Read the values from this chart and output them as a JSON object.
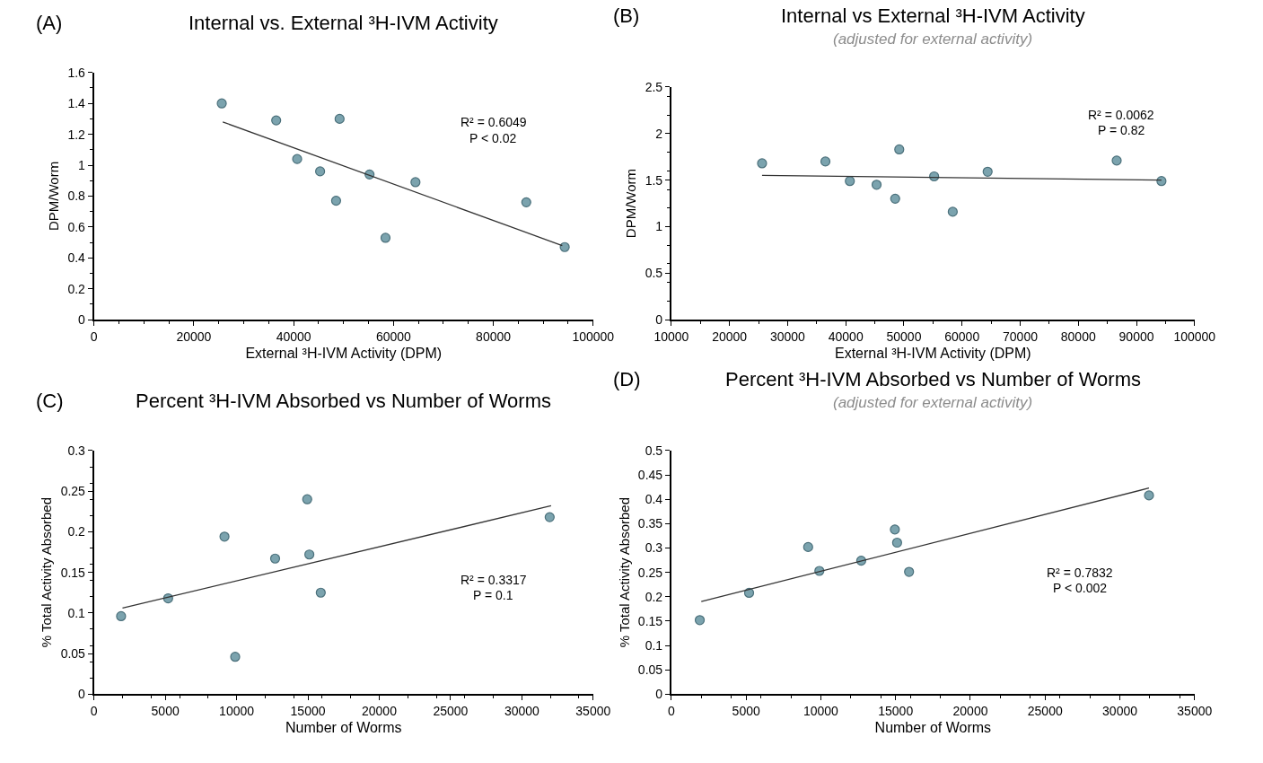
{
  "chart_data": [
    {
      "type": "scatter",
      "title": "Internal vs. External ³H-IVM Activity",
      "annotations": [
        "(A)",
        "R² = 0.6049",
        "P < 0.02"
      ],
      "xlabel": "External ³H-IVM Activity (DPM)",
      "ylabel": "DPM/Worm",
      "xlim": [
        0,
        100000
      ],
      "xticks": [
        0,
        20000,
        40000,
        60000,
        80000,
        100000
      ],
      "ylim": [
        0,
        1.6
      ],
      "yticks": [
        0,
        0.2,
        0.4,
        0.6,
        0.8,
        1,
        1.2,
        1.4,
        1.6
      ],
      "grid": false,
      "legend": false,
      "marker": "circle",
      "series": [
        {
          "color": "#7ba3ae",
          "x": [
            25600,
            36500,
            49200,
            40700,
            45300,
            48500,
            55200,
            58400,
            64400,
            86600,
            94300
          ],
          "values": [
            1.4,
            1.29,
            1.3,
            1.04,
            0.96,
            0.77,
            0.94,
            0.53,
            0.89,
            0.76,
            0.47
          ]
        },
        {
          "type": "line",
          "color": "#333333",
          "line_style": "solid",
          "marker": "none",
          "x": [
            25800,
            93800
          ],
          "values": [
            1.28,
            0.48
          ]
        }
      ]
    },
    {
      "type": "scatter",
      "title": "Internal vs External ³H-IVM Activity",
      "subtitle": "(adjusted for external activity)",
      "annotations": [
        "(B)",
        "R² = 0.0062",
        "P = 0.82"
      ],
      "xlabel": "External ³H-IVM Activity (DPM)",
      "ylabel": "DPM/Worm",
      "xlim": [
        10000,
        100000
      ],
      "xticks": [
        10000,
        20000,
        30000,
        40000,
        50000,
        60000,
        70000,
        80000,
        90000,
        100000
      ],
      "ylim": [
        0,
        2.5
      ],
      "yticks": [
        0,
        0.5,
        1,
        1.5,
        2,
        2.5
      ],
      "grid": false,
      "legend": false,
      "marker": "circle",
      "series": [
        {
          "color": "#7ba3ae",
          "x": [
            25600,
            36500,
            49200,
            40700,
            45300,
            48500,
            55200,
            58400,
            64400,
            86600,
            94300
          ],
          "values": [
            1.68,
            1.7,
            1.83,
            1.49,
            1.45,
            1.3,
            1.54,
            1.16,
            1.59,
            1.71,
            1.49
          ]
        },
        {
          "type": "line",
          "color": "#333333",
          "line_style": "solid",
          "marker": "none",
          "x": [
            25600,
            94300
          ],
          "values": [
            1.55,
            1.5
          ]
        }
      ]
    },
    {
      "type": "scatter",
      "title": "Percent ³H-IVM Absorbed vs Number of Worms",
      "annotations": [
        "(C)",
        "R² = 0.3317",
        "P = 0.1"
      ],
      "xlabel": "Number of Worms",
      "ylabel": "% Total Activity Absorbed",
      "xlim": [
        0,
        35000
      ],
      "xticks": [
        0,
        5000,
        10000,
        15000,
        20000,
        25000,
        30000,
        35000
      ],
      "ylim": [
        0,
        0.3
      ],
      "yticks": [
        0,
        0.05,
        0.1,
        0.15,
        0.2,
        0.25,
        0.3
      ],
      "grid": false,
      "legend": false,
      "marker": "circle",
      "series": [
        {
          "color": "#7ba3ae",
          "x": [
            1900,
            5200,
            9150,
            9900,
            12700,
            14950,
            15100,
            15900,
            31950
          ],
          "values": [
            0.096,
            0.118,
            0.194,
            0.046,
            0.167,
            0.24,
            0.172,
            0.125,
            0.218
          ]
        },
        {
          "type": "line",
          "color": "#333333",
          "line_style": "solid",
          "marker": "none",
          "x": [
            2000,
            32050
          ],
          "values": [
            0.106,
            0.232
          ]
        }
      ]
    },
    {
      "type": "scatter",
      "title": "Percent ³H-IVM Absorbed vs Number of Worms",
      "subtitle": "(adjusted for external activity)",
      "annotations": [
        "(D)",
        "R² = 0.7832",
        "P < 0.002"
      ],
      "xlabel": "Number of Worms",
      "ylabel": "% Total Activity Absorbed",
      "xlim": [
        0,
        35000
      ],
      "xticks": [
        0,
        5000,
        10000,
        15000,
        20000,
        25000,
        30000,
        35000
      ],
      "ylim": [
        0,
        0.5
      ],
      "yticks": [
        0,
        0.05,
        0.1,
        0.15,
        0.2,
        0.25,
        0.3,
        0.35,
        0.4,
        0.45,
        0.5
      ],
      "grid": false,
      "legend": false,
      "marker": "circle",
      "series": [
        {
          "color": "#7ba3ae",
          "x": [
            1900,
            5200,
            9150,
            9900,
            12700,
            14950,
            15100,
            15900,
            31950
          ],
          "values": [
            0.152,
            0.208,
            0.302,
            0.253,
            0.274,
            0.338,
            0.311,
            0.251,
            0.408
          ]
        },
        {
          "type": "line",
          "color": "#333333",
          "line_style": "solid",
          "marker": "none",
          "x": [
            2000,
            31950
          ],
          "values": [
            0.19,
            0.423
          ]
        }
      ]
    }
  ]
}
